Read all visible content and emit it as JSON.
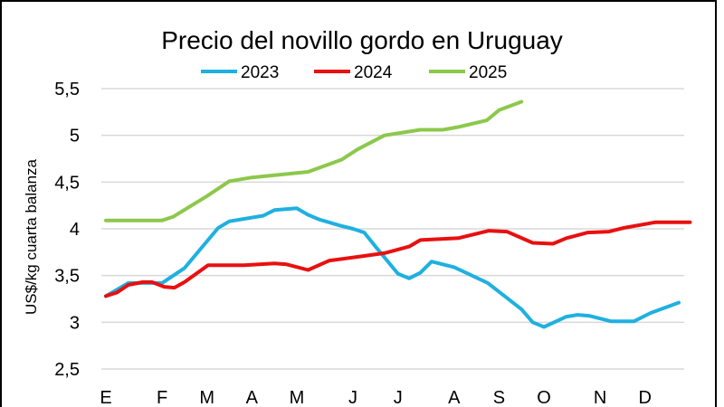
{
  "chart_data": {
    "type": "line",
    "title": "Precio del novillo gordo en Uruguay",
    "xlabel": "",
    "ylabel": "US$/kg cuarta balanza",
    "ylim": [
      2.5,
      5.5
    ],
    "yticks": [
      "2,5",
      "3",
      "3,5",
      "4",
      "4,5",
      "5",
      "5,5"
    ],
    "ytick_values": [
      2.5,
      3,
      3.5,
      4,
      4.5,
      5,
      5.5
    ],
    "xlim": [
      1,
      53
    ],
    "xticks": [
      {
        "label": "E",
        "week": 1
      },
      {
        "label": "F",
        "week": 6
      },
      {
        "label": "M",
        "week": 10
      },
      {
        "label": "A",
        "week": 14
      },
      {
        "label": "M",
        "week": 18
      },
      {
        "label": "J",
        "week": 23
      },
      {
        "label": "J",
        "week": 27
      },
      {
        "label": "A",
        "week": 32
      },
      {
        "label": "S",
        "week": 36
      },
      {
        "label": "O",
        "week": 40
      },
      {
        "label": "N",
        "week": 45
      },
      {
        "label": "D",
        "week": 49
      }
    ],
    "grid": true,
    "legend_position": "top",
    "series": [
      {
        "name": "2023",
        "color": "#1fb0e0",
        "x": [
          1,
          3,
          6,
          8,
          11,
          12,
          15,
          16,
          18,
          19,
          20,
          22,
          23,
          24,
          25,
          27,
          28,
          29,
          30,
          32,
          35,
          38,
          39,
          40,
          42,
          43,
          44,
          46,
          48,
          49.5,
          52
        ],
        "y": [
          3.28,
          3.42,
          3.42,
          3.58,
          4.01,
          4.08,
          4.14,
          4.2,
          4.22,
          4.15,
          4.1,
          4.03,
          4.0,
          3.96,
          3.81,
          3.52,
          3.47,
          3.53,
          3.65,
          3.59,
          3.42,
          3.14,
          3.0,
          2.95,
          3.06,
          3.08,
          3.07,
          3.01,
          3.01,
          3.1,
          3.21
        ]
      },
      {
        "name": "2024",
        "color": "#e81010",
        "x": [
          1,
          2,
          3,
          4.3,
          5.1,
          6.2,
          7.1,
          8,
          10.1,
          13.3,
          16,
          17.1,
          19,
          20.9,
          23.4,
          25.8,
          28,
          29,
          32.4,
          35.1,
          36.7,
          39,
          40.8,
          42,
          43.9,
          45.8,
          47.1,
          49.9,
          53
        ],
        "y": [
          3.28,
          3.32,
          3.4,
          3.43,
          3.43,
          3.38,
          3.37,
          3.43,
          3.61,
          3.61,
          3.63,
          3.62,
          3.56,
          3.66,
          3.7,
          3.74,
          3.81,
          3.88,
          3.9,
          3.98,
          3.97,
          3.85,
          3.84,
          3.9,
          3.96,
          3.97,
          4.01,
          4.07,
          4.07
        ]
      },
      {
        "name": "2025",
        "color": "#8cc84b",
        "x": [
          1,
          6,
          7,
          10,
          12,
          14,
          19,
          22,
          23.4,
          25.8,
          29,
          31,
          32.4,
          34.9,
          36,
          38
        ],
        "y": [
          4.09,
          4.09,
          4.13,
          4.35,
          4.51,
          4.55,
          4.61,
          4.74,
          4.85,
          5.0,
          5.06,
          5.06,
          5.09,
          5.16,
          5.27,
          5.36
        ]
      }
    ]
  }
}
